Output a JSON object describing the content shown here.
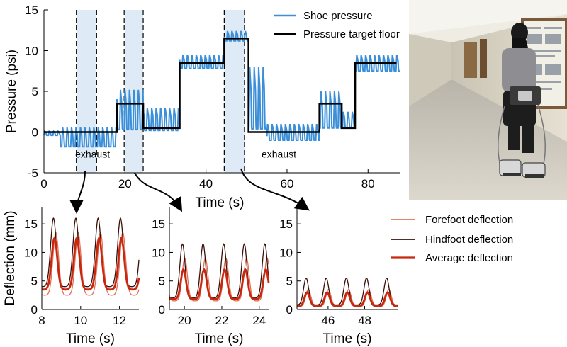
{
  "chart_data": [
    {
      "type": "line",
      "id": "pressure",
      "ylabel": "Pressure (psi)",
      "xlabel": "Time (s)",
      "xlim": [
        0,
        88
      ],
      "ylim": [
        -5,
        15
      ],
      "xticks": [
        0,
        20,
        40,
        60,
        80
      ],
      "yticks": [
        -5,
        0,
        5,
        10,
        15
      ],
      "legend": [
        "Shoe pressure",
        "Pressure target floor"
      ],
      "legend_position": "top-right",
      "annotations": [
        "exhaust",
        "exhaust"
      ],
      "annotation_x": [
        12,
        58
      ],
      "annotation_y": [
        -2.7,
        -2.7
      ],
      "highlight_windows": [
        [
          8,
          13
        ],
        [
          20,
          24.5
        ],
        [
          44.5,
          49.5
        ]
      ],
      "dashed_marker_x": [
        8,
        13,
        19.8,
        24.5,
        44.5,
        49.5
      ],
      "target_floor": {
        "x": [
          0,
          18,
          18,
          24.5,
          24.5,
          33.5,
          33.5,
          44.5,
          44.5,
          50.5,
          50.5,
          68,
          68,
          73.5,
          73.5,
          76.8,
          76.8,
          87
        ],
        "y": [
          0,
          0,
          3.5,
          3.5,
          0.5,
          0.5,
          8.5,
          8.5,
          11.5,
          11.5,
          0,
          0,
          3.5,
          3.5,
          0.5,
          0.5,
          8.5,
          8.5
        ]
      },
      "segments": [
        {
          "start": 0,
          "end": 4,
          "hi": 0.1,
          "lo": -0.4
        },
        {
          "start": 4,
          "end": 18,
          "hi": 0.6,
          "lo": -1.8
        },
        {
          "start": 18,
          "end": 24.5,
          "hi": 5.2,
          "lo": 0.3
        },
        {
          "start": 24.5,
          "end": 33.5,
          "hi": 3.0,
          "lo": 0.2
        },
        {
          "start": 33.5,
          "end": 44.5,
          "hi": 9.5,
          "lo": 7.8
        },
        {
          "start": 44.5,
          "end": 50.5,
          "hi": 12.4,
          "lo": 11.2
        },
        {
          "start": 50.5,
          "end": 55,
          "hi": 8.0,
          "lo": 0.4
        },
        {
          "start": 55,
          "end": 68,
          "hi": 1.0,
          "lo": -1.0
        },
        {
          "start": 68,
          "end": 73.5,
          "hi": 5.0,
          "lo": 0.5
        },
        {
          "start": 73.5,
          "end": 76.8,
          "hi": 2.5,
          "lo": 0.5
        },
        {
          "start": 76.8,
          "end": 88,
          "hi": 9.5,
          "lo": 7.5
        }
      ],
      "step_period_s": 1.1
    },
    {
      "type": "line",
      "id": "deflection-exhaust",
      "ylabel": "Deflection (mm)",
      "xlabel": "Time (s)",
      "xlim": [
        8,
        13
      ],
      "ylim": [
        0,
        18
      ],
      "xticks": [
        8,
        10,
        12
      ],
      "yticks": [
        0,
        5,
        10,
        15
      ],
      "first_peak": 8.6,
      "period": 1.15,
      "series": [
        {
          "name": "Forefoot deflection",
          "base": 2.5,
          "peak": 13.5
        },
        {
          "name": "Hindfoot deflection",
          "base": 4.0,
          "peak": 16.0
        },
        {
          "name": "Average deflection",
          "base": 3.5,
          "peak": 12.5
        }
      ]
    },
    {
      "type": "line",
      "id": "deflection-mid",
      "ylabel": "",
      "xlabel": "Time (s)",
      "xlim": [
        19.2,
        24.5
      ],
      "ylim": [
        0,
        18
      ],
      "xticks": [
        20,
        22,
        24
      ],
      "yticks": [
        0,
        5,
        10,
        15
      ],
      "first_peak": 19.9,
      "period": 1.1,
      "series": [
        {
          "name": "Forefoot deflection",
          "base": 1.5,
          "peak": 9.0
        },
        {
          "name": "Hindfoot deflection",
          "base": 2.0,
          "peak": 11.5
        },
        {
          "name": "Average deflection",
          "base": 1.8,
          "peak": 7.0
        }
      ]
    },
    {
      "type": "line",
      "id": "deflection-high",
      "ylabel": "",
      "xlabel": "Time (s)",
      "xlim": [
        44.3,
        49.8
      ],
      "ylim": [
        0,
        18
      ],
      "xticks": [
        46,
        48
      ],
      "yticks": [
        0,
        5,
        10,
        15
      ],
      "first_peak": 44.8,
      "period": 1.1,
      "series": [
        {
          "name": "Forefoot deflection",
          "base": 0.5,
          "peak": 3.5
        },
        {
          "name": "Hindfoot deflection",
          "base": 0.8,
          "peak": 5.5
        },
        {
          "name": "Average deflection",
          "base": 0.6,
          "peak": 3.0
        }
      ]
    }
  ],
  "legend2": {
    "items": [
      "Forefoot deflection",
      "Hindfoot deflection",
      "Average deflection"
    ]
  },
  "colors": {
    "shoe": "#3b8fd9",
    "target": "#000000",
    "highlight": "#deebf7",
    "forefoot": "#e0715a",
    "hindfoot": "#3a0f08",
    "average": "#c8280e"
  }
}
